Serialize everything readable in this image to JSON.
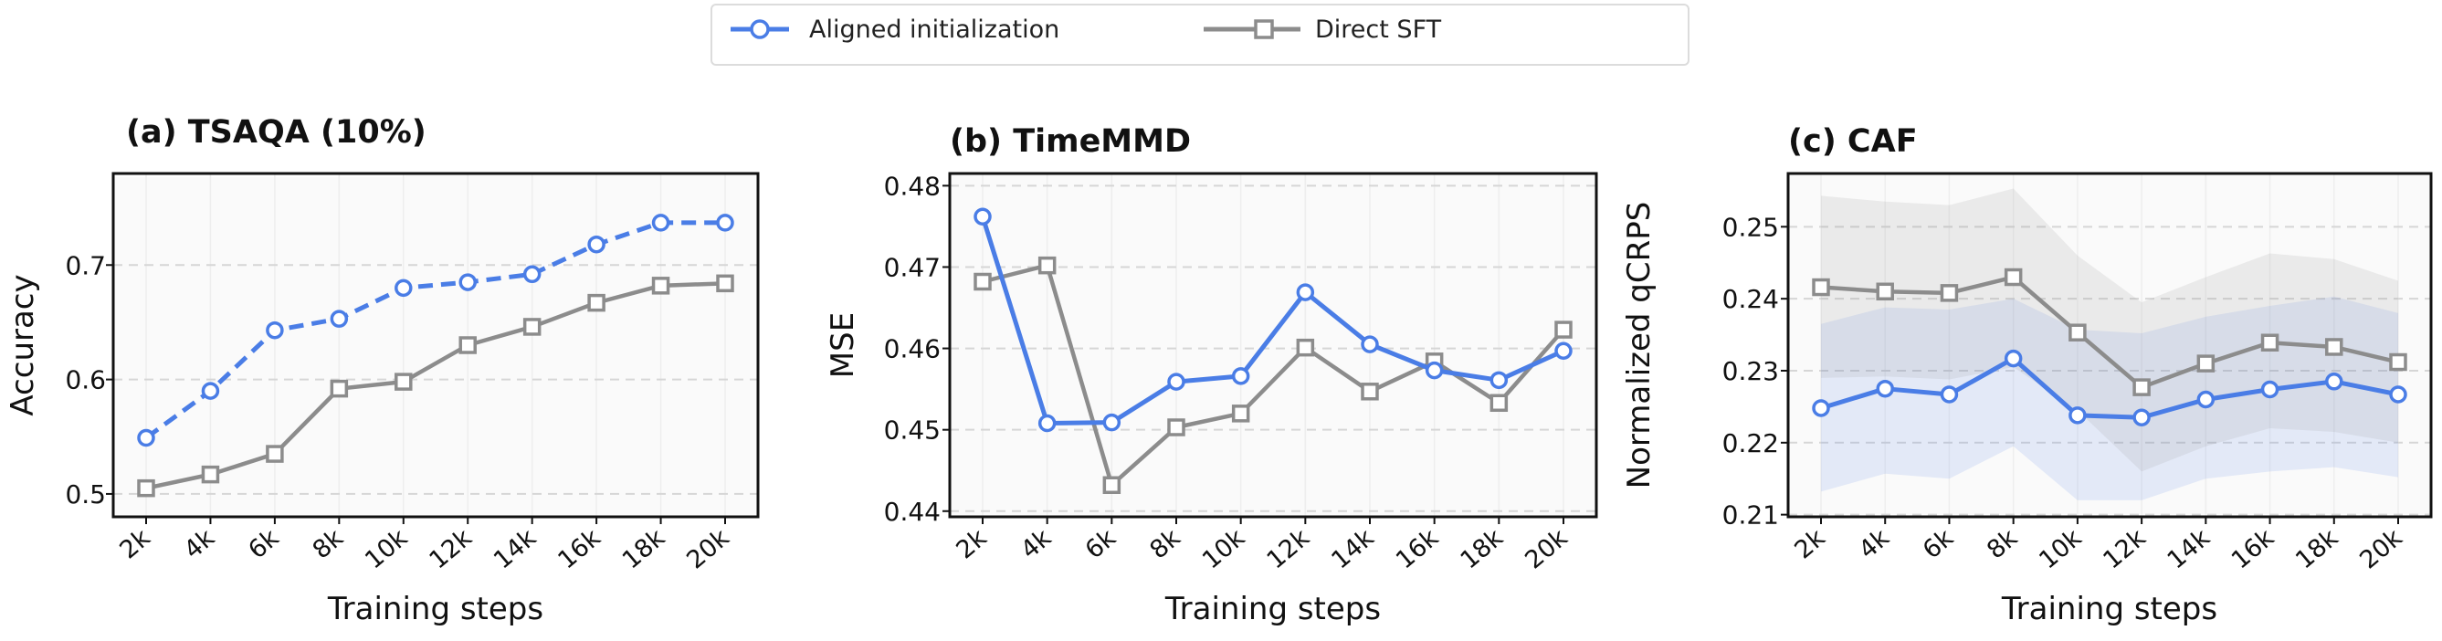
{
  "legend": {
    "items": [
      {
        "label": "Aligned initialization",
        "color": "#4a7de6",
        "marker": "circle",
        "linestyle": "solid"
      },
      {
        "label": "Direct SFT",
        "color": "#8c8c8c",
        "marker": "square",
        "linestyle": "solid"
      }
    ]
  },
  "chart_data": [
    {
      "type": "line",
      "title": "(a) TSAQA (10%)",
      "xlabel": "Training steps",
      "ylabel": "Accuracy",
      "categories": [
        "2k",
        "4k",
        "6k",
        "8k",
        "10k",
        "12k",
        "14k",
        "16k",
        "18k",
        "20k"
      ],
      "ylim": [
        0.48,
        0.78
      ],
      "yticks": [
        0.5,
        0.6,
        0.7
      ],
      "ytick_labels": [
        "0.5",
        "0.6",
        "0.7"
      ],
      "grid": "horizontal dashed",
      "series": [
        {
          "name": "Aligned initialization",
          "color": "#4a7de6",
          "marker": "circle",
          "dashed": true,
          "values": [
            0.549,
            0.59,
            0.643,
            0.653,
            0.68,
            0.685,
            0.692,
            0.718,
            0.737,
            0.737
          ]
        },
        {
          "name": "Direct SFT",
          "color": "#8c8c8c",
          "marker": "square",
          "dashed": false,
          "values": [
            0.505,
            0.517,
            0.535,
            0.592,
            0.598,
            0.63,
            0.646,
            0.667,
            0.682,
            0.684
          ]
        }
      ]
    },
    {
      "type": "line",
      "title": "(b) TimeMMD",
      "xlabel": "Training steps",
      "ylabel": "MSE",
      "categories": [
        "2k",
        "4k",
        "6k",
        "8k",
        "10k",
        "12k",
        "14k",
        "16k",
        "18k",
        "20k"
      ],
      "ylim": [
        0.4393,
        0.4815
      ],
      "yticks": [
        0.44,
        0.45,
        0.46,
        0.47,
        0.48
      ],
      "ytick_labels": [
        "0.44",
        "0.45",
        "0.46",
        "0.47",
        "0.48"
      ],
      "grid": "horizontal dashed",
      "series": [
        {
          "name": "Aligned initialization",
          "color": "#4a7de6",
          "marker": "circle",
          "dashed": false,
          "values": [
            0.4762,
            0.4508,
            0.4509,
            0.4559,
            0.4566,
            0.4669,
            0.4605,
            0.4573,
            0.4561,
            0.4597
          ]
        },
        {
          "name": "Direct SFT",
          "color": "#8c8c8c",
          "marker": "square",
          "dashed": false,
          "values": [
            0.4682,
            0.4702,
            0.4432,
            0.4503,
            0.452,
            0.4601,
            0.4547,
            0.4584,
            0.4533,
            0.4623
          ]
        }
      ]
    },
    {
      "type": "line",
      "title": "(c) CAF",
      "xlabel": "Training steps",
      "ylabel": "Normalized qCRPS",
      "categories": [
        "2k",
        "4k",
        "6k",
        "8k",
        "10k",
        "12k",
        "14k",
        "16k",
        "18k",
        "20k"
      ],
      "ylim": [
        0.2097,
        0.2574
      ],
      "yticks": [
        0.21,
        0.22,
        0.23,
        0.24,
        0.25
      ],
      "ytick_labels": [
        "0.21",
        "0.22",
        "0.23",
        "0.24",
        "0.25"
      ],
      "grid": "horizontal dashed",
      "series": [
        {
          "name": "Aligned initialization",
          "color": "#4a7de6",
          "marker": "circle",
          "dashed": false,
          "values": [
            0.2248,
            0.2275,
            0.2267,
            0.2317,
            0.2238,
            0.2235,
            0.226,
            0.2274,
            0.2285,
            0.2267
          ],
          "band_lower": [
            0.2132,
            0.2157,
            0.215,
            0.2195,
            0.212,
            0.212,
            0.215,
            0.216,
            0.2166,
            0.2152
          ],
          "band_upper": [
            0.2365,
            0.2388,
            0.2385,
            0.24,
            0.2357,
            0.2352,
            0.2375,
            0.239,
            0.2403,
            0.238
          ]
        },
        {
          "name": "Direct SFT",
          "color": "#8c8c8c",
          "marker": "square",
          "dashed": false,
          "values": [
            0.2416,
            0.241,
            0.2408,
            0.243,
            0.2353,
            0.2277,
            0.231,
            0.2339,
            0.2333,
            0.2312
          ],
          "band_lower": [
            0.229,
            0.2292,
            0.2288,
            0.2305,
            0.2245,
            0.216,
            0.2195,
            0.222,
            0.2215,
            0.22
          ],
          "band_upper": [
            0.2543,
            0.2535,
            0.253,
            0.2553,
            0.246,
            0.2395,
            0.243,
            0.2463,
            0.2455,
            0.2425
          ]
        }
      ]
    }
  ]
}
